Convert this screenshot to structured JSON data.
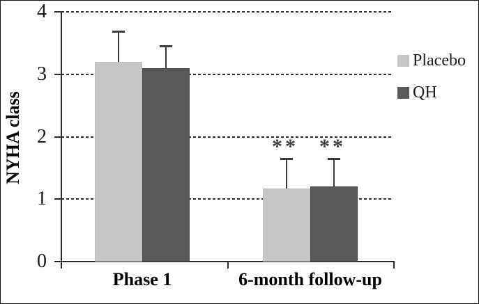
{
  "figure": {
    "background": "#ffffff",
    "frame_color": "#111111"
  },
  "chart_data": {
    "type": "bar",
    "title": "",
    "xlabel": "",
    "ylabel": "NYHA class",
    "categories": [
      "Phase 1",
      "6-month follow-up"
    ],
    "series": [
      {
        "name": "Placebo",
        "color": "#c7c7c7",
        "values": [
          3.2,
          1.17
        ],
        "errors_up": [
          0.48,
          0.47
        ]
      },
      {
        "name": "QH",
        "color": "#595959",
        "values": [
          3.1,
          1.2
        ],
        "errors_up": [
          0.34,
          0.44
        ]
      }
    ],
    "significance_annotations": [
      {
        "category_index": 1,
        "series_index": 0,
        "text": "**"
      },
      {
        "category_index": 1,
        "series_index": 1,
        "text": "**"
      }
    ],
    "ylim": [
      0,
      4
    ],
    "yticks": [
      0,
      1,
      2,
      3,
      4
    ],
    "grid": "horizontal-dashed",
    "gridline_color": "#2e2e2e",
    "axis_color": "#2b2b2b",
    "error_bar_color": "#3a3a3a",
    "annotation_color": "#3f3f3f",
    "legend_position": "right"
  }
}
